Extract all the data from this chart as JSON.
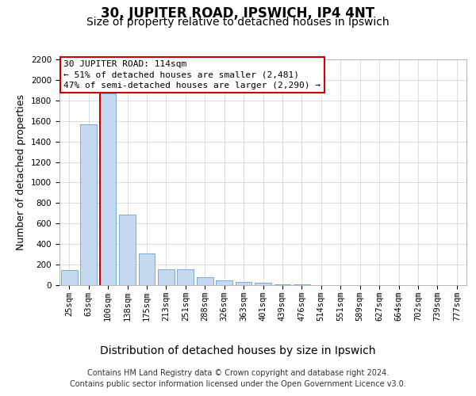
{
  "title": "30, JUPITER ROAD, IPSWICH, IP4 4NT",
  "subtitle": "Size of property relative to detached houses in Ipswich",
  "xlabel": "Distribution of detached houses by size in Ipswich",
  "ylabel": "Number of detached properties",
  "categories": [
    "25sqm",
    "63sqm",
    "100sqm",
    "138sqm",
    "175sqm",
    "213sqm",
    "251sqm",
    "288sqm",
    "326sqm",
    "363sqm",
    "401sqm",
    "439sqm",
    "476sqm",
    "514sqm",
    "551sqm",
    "589sqm",
    "627sqm",
    "664sqm",
    "702sqm",
    "739sqm",
    "777sqm"
  ],
  "values": [
    150,
    1570,
    1870,
    690,
    310,
    155,
    155,
    80,
    45,
    30,
    20,
    10,
    5,
    3,
    2,
    1,
    1,
    0,
    0,
    0,
    0
  ],
  "bar_color": "#c5d9f0",
  "bar_edge_color": "#7aabdb",
  "vline_color": "#cc0000",
  "vline_bar_index": 2,
  "ylim": [
    0,
    2200
  ],
  "yticks": [
    0,
    200,
    400,
    600,
    800,
    1000,
    1200,
    1400,
    1600,
    1800,
    2000,
    2200
  ],
  "annotation_text": "30 JUPITER ROAD: 114sqm\n← 51% of detached houses are smaller (2,481)\n47% of semi-detached houses are larger (2,290) →",
  "annotation_box_facecolor": "#ffffff",
  "annotation_box_edgecolor": "#cc0000",
  "footer1": "Contains HM Land Registry data © Crown copyright and database right 2024.",
  "footer2": "Contains public sector information licensed under the Open Government Licence v3.0.",
  "title_fontsize": 12,
  "subtitle_fontsize": 10,
  "tick_fontsize": 7.5,
  "ylabel_fontsize": 9,
  "xlabel_fontsize": 10,
  "annotation_fontsize": 8,
  "footer_fontsize": 7
}
